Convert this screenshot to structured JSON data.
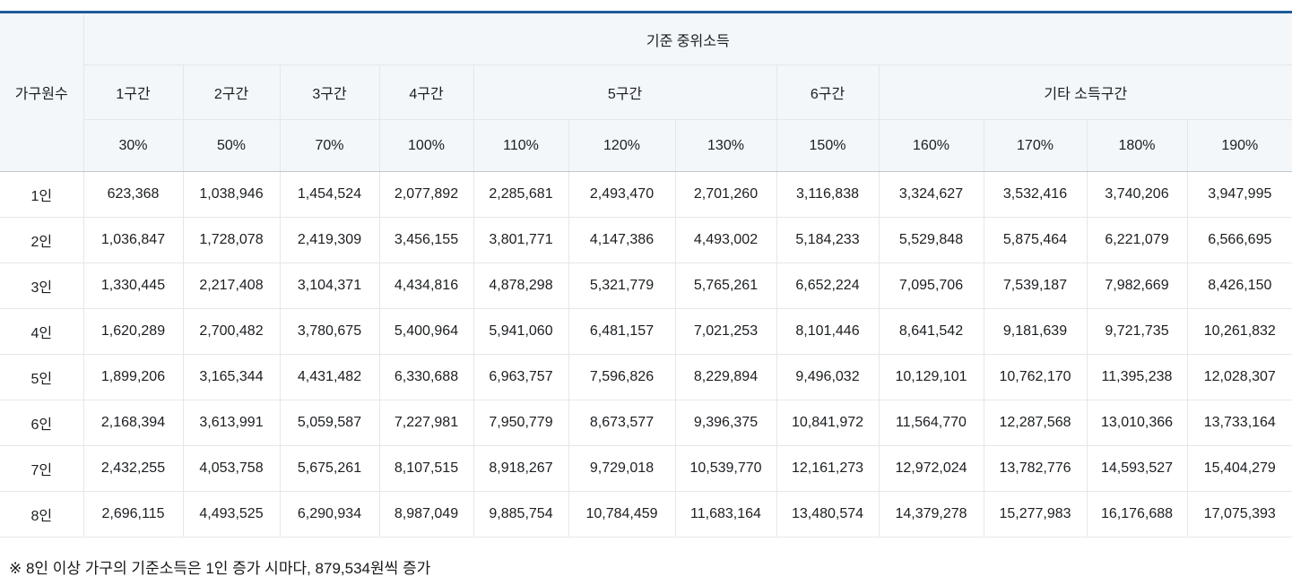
{
  "chart_data": {
    "type": "table",
    "title": "기준 중위소득",
    "row_header": "가구원수",
    "column_groups": [
      {
        "label": "1구간",
        "span": 1
      },
      {
        "label": "2구간",
        "span": 1
      },
      {
        "label": "3구간",
        "span": 1
      },
      {
        "label": "4구간",
        "span": 1
      },
      {
        "label": "5구간",
        "span": 3
      },
      {
        "label": "6구간",
        "span": 1
      },
      {
        "label": "기타 소득구간",
        "span": 4
      }
    ],
    "columns": [
      "30%",
      "50%",
      "70%",
      "100%",
      "110%",
      "120%",
      "130%",
      "150%",
      "160%",
      "170%",
      "180%",
      "190%"
    ],
    "rows": [
      {
        "label": "1인",
        "values": [
          "623,368",
          "1,038,946",
          "1,454,524",
          "2,077,892",
          "2,285,681",
          "2,493,470",
          "2,701,260",
          "3,116,838",
          "3,324,627",
          "3,532,416",
          "3,740,206",
          "3,947,995"
        ]
      },
      {
        "label": "2인",
        "values": [
          "1,036,847",
          "1,728,078",
          "2,419,309",
          "3,456,155",
          "3,801,771",
          "4,147,386",
          "4,493,002",
          "5,184,233",
          "5,529,848",
          "5,875,464",
          "6,221,079",
          "6,566,695"
        ]
      },
      {
        "label": "3인",
        "values": [
          "1,330,445",
          "2,217,408",
          "3,104,371",
          "4,434,816",
          "4,878,298",
          "5,321,779",
          "5,765,261",
          "6,652,224",
          "7,095,706",
          "7,539,187",
          "7,982,669",
          "8,426,150"
        ]
      },
      {
        "label": "4인",
        "values": [
          "1,620,289",
          "2,700,482",
          "3,780,675",
          "5,400,964",
          "5,941,060",
          "6,481,157",
          "7,021,253",
          "8,101,446",
          "8,641,542",
          "9,181,639",
          "9,721,735",
          "10,261,832"
        ]
      },
      {
        "label": "5인",
        "values": [
          "1,899,206",
          "3,165,344",
          "4,431,482",
          "6,330,688",
          "6,963,757",
          "7,596,826",
          "8,229,894",
          "9,496,032",
          "10,129,101",
          "10,762,170",
          "11,395,238",
          "12,028,307"
        ]
      },
      {
        "label": "6인",
        "values": [
          "2,168,394",
          "3,613,991",
          "5,059,587",
          "7,227,981",
          "7,950,779",
          "8,673,577",
          "9,396,375",
          "10,841,972",
          "11,564,770",
          "12,287,568",
          "13,010,366",
          "13,733,164"
        ]
      },
      {
        "label": "7인",
        "values": [
          "2,432,255",
          "4,053,758",
          "5,675,261",
          "8,107,515",
          "8,918,267",
          "9,729,018",
          "10,539,770",
          "12,161,273",
          "12,972,024",
          "13,782,776",
          "14,593,527",
          "15,404,279"
        ]
      },
      {
        "label": "8인",
        "values": [
          "2,696,115",
          "4,493,525",
          "6,290,934",
          "8,987,049",
          "9,885,754",
          "10,784,459",
          "11,683,164",
          "13,480,574",
          "14,379,278",
          "15,277,983",
          "16,176,688",
          "17,075,393"
        ]
      }
    ]
  },
  "footnote": "※ 8인 이상 가구의 기준소득은 1인 증가 시마다, 879,534원씩 증가",
  "colors": {
    "accent_top_border": "#1e5c9c",
    "header_background": "#f4f7fa",
    "grid_line": "#e4e7ea",
    "header_bottom_line": "#c3c7cb",
    "text": "#1b1e21"
  }
}
